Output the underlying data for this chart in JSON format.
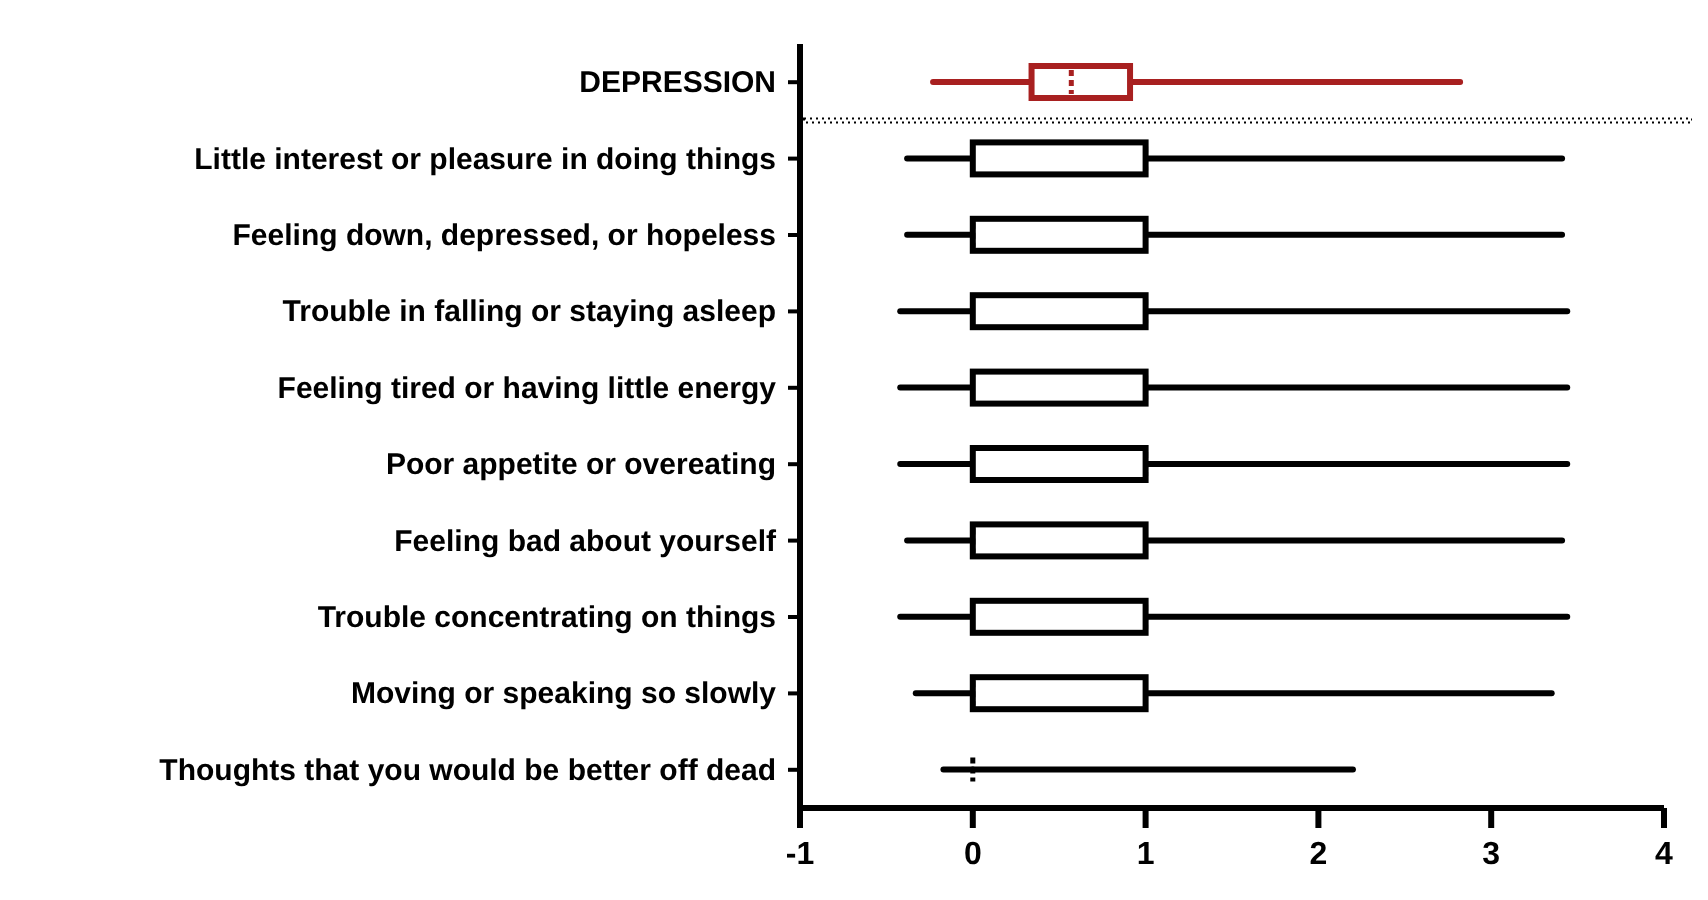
{
  "chart_data": {
    "type": "box",
    "orientation": "horizontal",
    "categories": [
      "DEPRESSION",
      "Little interest or pleasure in doing things",
      "Feeling down, depressed, or hopeless",
      "Trouble in falling or staying asleep",
      "Feeling tired or having little energy",
      "Poor appetite or overeating",
      "Feeling bad about yourself",
      "Trouble concentrating on things",
      "Moving or speaking so slowly",
      "Thoughts that you would be better off dead"
    ],
    "boxes": [
      {
        "low": -0.23,
        "q1": 0.34,
        "median": 0.57,
        "q3": 0.91,
        "high": 2.82
      },
      {
        "low": -0.38,
        "q1": 0,
        "median": 1,
        "q3": 1,
        "high": 3.41
      },
      {
        "low": -0.38,
        "q1": 0,
        "median": 0,
        "q3": 1,
        "high": 3.41
      },
      {
        "low": -0.42,
        "q1": 0,
        "median": 1,
        "q3": 1,
        "high": 3.44
      },
      {
        "low": -0.42,
        "q1": 0,
        "median": 1,
        "q3": 1,
        "high": 3.44
      },
      {
        "low": -0.42,
        "q1": 0,
        "median": 1,
        "q3": 1,
        "high": 3.44
      },
      {
        "low": -0.38,
        "q1": 0,
        "median": 0,
        "q3": 1,
        "high": 3.41
      },
      {
        "low": -0.42,
        "q1": 0,
        "median": 1,
        "q3": 1,
        "high": 3.44
      },
      {
        "low": -0.33,
        "q1": 0,
        "median": 0,
        "q3": 1,
        "high": 3.35
      },
      {
        "low": -0.17,
        "q1": 0,
        "median": 0,
        "q3": 0,
        "high": 2.2
      }
    ],
    "colors": [
      "#a82020",
      "#000000",
      "#000000",
      "#000000",
      "#000000",
      "#000000",
      "#000000",
      "#000000",
      "#000000",
      "#000000"
    ],
    "xlim": [
      -1,
      4
    ],
    "xticks": [
      -1,
      0,
      1,
      2,
      3,
      4
    ]
  }
}
